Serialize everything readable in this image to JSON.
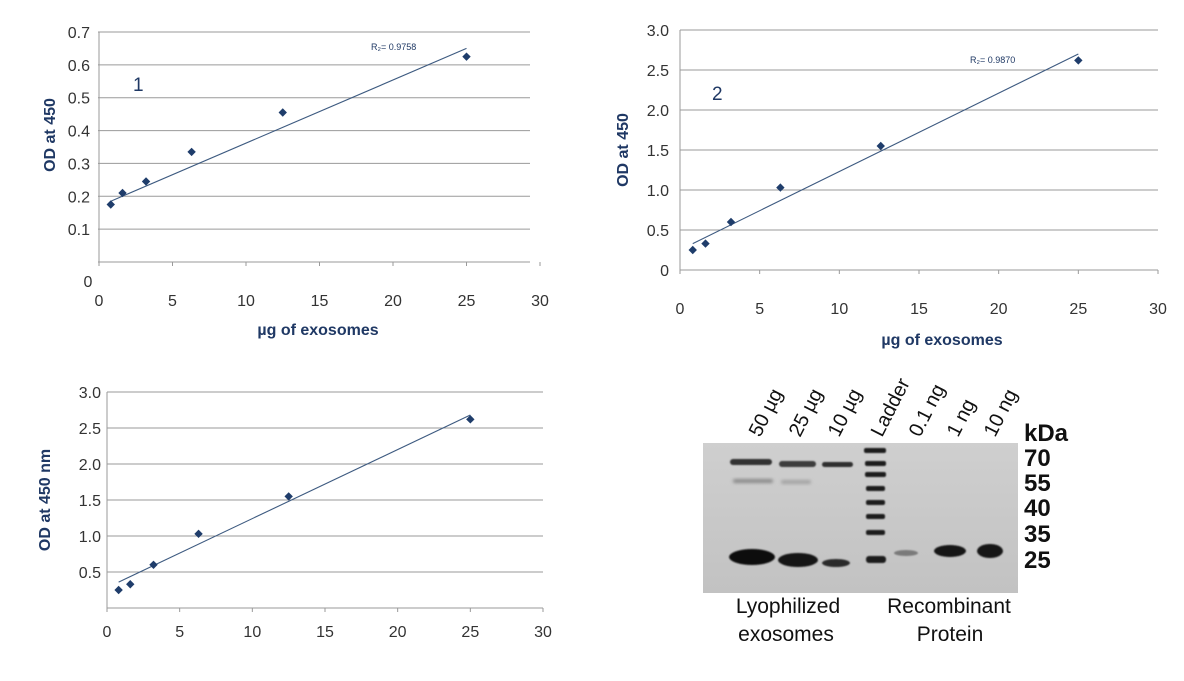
{
  "chart_data": [
    {
      "type": "scatter",
      "panel_label": "1",
      "xlabel": "µg of exosomes",
      "ylabel": "OD at 450",
      "r2_text": "R₂= 0.9758",
      "xlim": [
        0,
        30
      ],
      "ylim": [
        0,
        0.7
      ],
      "xticks": [
        0,
        5,
        10,
        15,
        20,
        25,
        30
      ],
      "yticks": [
        0.1,
        0.2,
        0.3,
        0.4,
        0.5,
        0.6,
        0.7
      ],
      "ytick_labels": [
        "0.1",
        "0.2",
        "0.3",
        "0.4",
        "0.5",
        "0.6",
        "0.7"
      ],
      "zero_label": "0",
      "points": [
        [
          0.8,
          0.175
        ],
        [
          1.6,
          0.21
        ],
        [
          3.2,
          0.245
        ],
        [
          6.3,
          0.335
        ],
        [
          12.5,
          0.455
        ],
        [
          25,
          0.625
        ]
      ],
      "trendline": [
        [
          0.8,
          0.185
        ],
        [
          25,
          0.65
        ]
      ],
      "grid": "horizontal",
      "color": "#1f3d6b"
    },
    {
      "type": "scatter",
      "panel_label": "2",
      "xlabel": "µg of exosomes",
      "ylabel": "OD at 450",
      "r2_text": "R₂= 0.9870",
      "xlim": [
        0,
        30
      ],
      "ylim": [
        0,
        3.0
      ],
      "xticks": [
        0,
        5,
        10,
        15,
        20,
        25,
        30
      ],
      "yticks": [
        0,
        0.5,
        1.0,
        1.5,
        2.0,
        2.5,
        3.0
      ],
      "ytick_labels": [
        "0",
        "0.5",
        "1.0",
        "1.5",
        "2.0",
        "2.5",
        "3.0"
      ],
      "points": [
        [
          0.8,
          0.25
        ],
        [
          1.6,
          0.33
        ],
        [
          3.2,
          0.6
        ],
        [
          6.3,
          1.03
        ],
        [
          12.6,
          1.55
        ],
        [
          25,
          2.62
        ]
      ],
      "trendline": [
        [
          0.8,
          0.33
        ],
        [
          25,
          2.7
        ]
      ],
      "grid": "horizontal",
      "color": "#1f3d6b"
    },
    {
      "type": "scatter",
      "ylabel": "OD at 450 nm",
      "xlim": [
        0,
        30
      ],
      "ylim": [
        0,
        3.0
      ],
      "xticks": [
        0,
        5,
        10,
        15,
        20,
        25,
        30
      ],
      "yticks": [
        0.5,
        1.0,
        1.5,
        2.0,
        2.5,
        3.0
      ],
      "ytick_labels": [
        "0.5",
        "1.0",
        "1.5",
        "2.0",
        "2.5",
        "3.0"
      ],
      "points": [
        [
          0.8,
          0.25
        ],
        [
          1.6,
          0.33
        ],
        [
          3.2,
          0.6
        ],
        [
          6.3,
          1.03
        ],
        [
          12.5,
          1.55
        ],
        [
          25,
          2.62
        ]
      ],
      "trendline": [
        [
          0.8,
          0.36
        ],
        [
          25,
          2.68
        ]
      ],
      "grid": "horizontal",
      "color": "#1f3d6b"
    }
  ],
  "blot": {
    "lanes": [
      "50 µg",
      "25 µg",
      "10 µg",
      "Ladder",
      "0.1 ng",
      "1 ng",
      "10 ng"
    ],
    "kda_title": "kDa",
    "kda_markers": [
      "70",
      "55",
      "40",
      "35",
      "25"
    ],
    "group_left": [
      "Lyophilized",
      "exosomes"
    ],
    "group_right": [
      "Recombinant",
      "Protein"
    ]
  }
}
